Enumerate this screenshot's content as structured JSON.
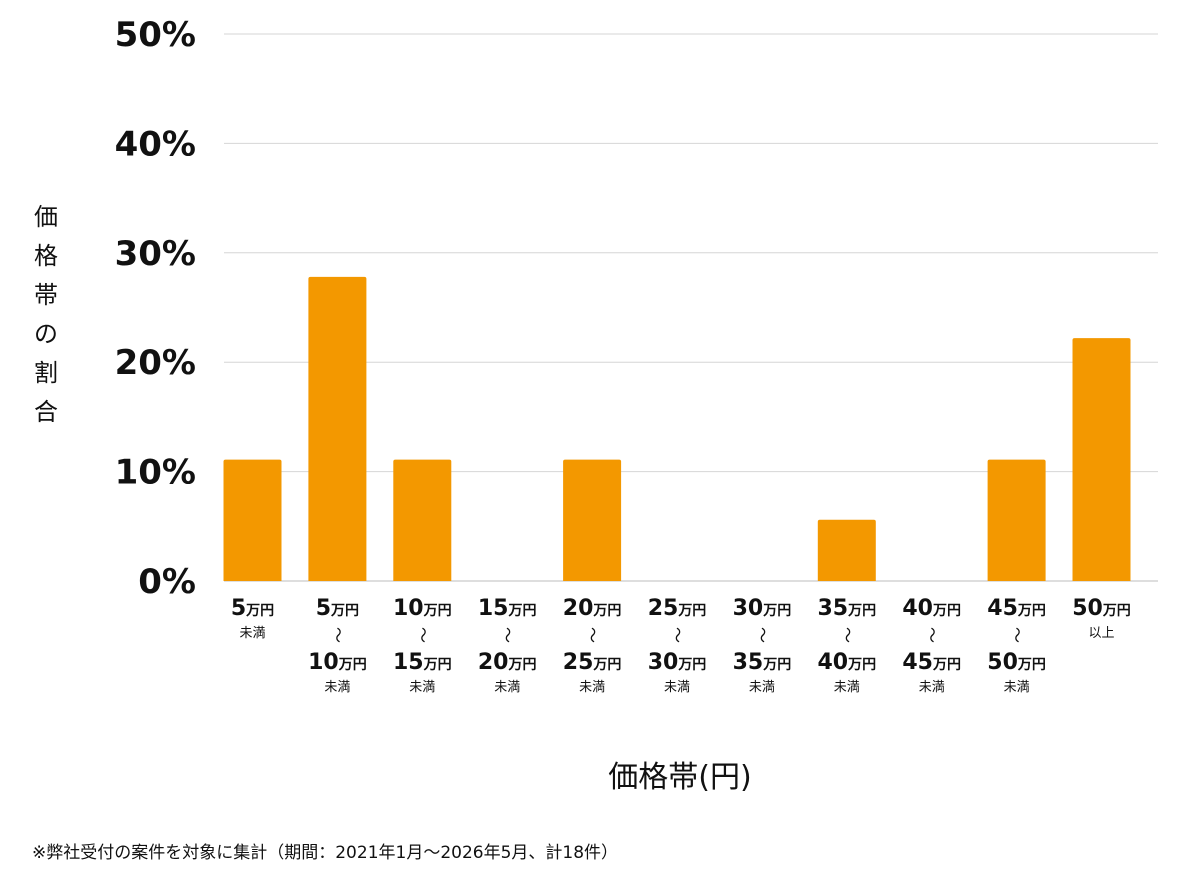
{
  "chart_data": {
    "type": "bar",
    "xlabel": "価格帯(円)",
    "ylabel": "価格帯の割合",
    "ylim": [
      0,
      50
    ],
    "yticks": [
      "0%",
      "10%",
      "20%",
      "30%",
      "40%",
      "50%"
    ],
    "grid": true,
    "bar_color": "#f39800",
    "categories": [
      {
        "parts": [
          {
            "num": "5",
            "unit": "万円"
          }
        ],
        "suffix": "未満"
      },
      {
        "parts": [
          {
            "num": "5",
            "unit": "万円"
          },
          {
            "num": "10",
            "unit": "万円"
          }
        ],
        "suffix": "未満"
      },
      {
        "parts": [
          {
            "num": "10",
            "unit": "万円"
          },
          {
            "num": "15",
            "unit": "万円"
          }
        ],
        "suffix": "未満"
      },
      {
        "parts": [
          {
            "num": "15",
            "unit": "万円"
          },
          {
            "num": "20",
            "unit": "万円"
          }
        ],
        "suffix": "未満"
      },
      {
        "parts": [
          {
            "num": "20",
            "unit": "万円"
          },
          {
            "num": "25",
            "unit": "万円"
          }
        ],
        "suffix": "未満"
      },
      {
        "parts": [
          {
            "num": "25",
            "unit": "万円"
          },
          {
            "num": "30",
            "unit": "万円"
          }
        ],
        "suffix": "未満"
      },
      {
        "parts": [
          {
            "num": "30",
            "unit": "万円"
          },
          {
            "num": "35",
            "unit": "万円"
          }
        ],
        "suffix": "未満"
      },
      {
        "parts": [
          {
            "num": "35",
            "unit": "万円"
          },
          {
            "num": "40",
            "unit": "万円"
          }
        ],
        "suffix": "未満"
      },
      {
        "parts": [
          {
            "num": "40",
            "unit": "万円"
          },
          {
            "num": "45",
            "unit": "万円"
          }
        ],
        "suffix": "未満"
      },
      {
        "parts": [
          {
            "num": "45",
            "unit": "万円"
          },
          {
            "num": "50",
            "unit": "万円"
          }
        ],
        "suffix": "未満"
      },
      {
        "parts": [
          {
            "num": "50",
            "unit": "万円"
          }
        ],
        "suffix": "以上"
      }
    ],
    "values": [
      11.1,
      27.8,
      11.1,
      0,
      11.1,
      0,
      0,
      5.6,
      0,
      11.1,
      22.2
    ],
    "range_separator": "〜"
  },
  "footnote": "※弊社受付の案件を対象に集計（期間：2021年1月〜2026年5月、計18件）"
}
